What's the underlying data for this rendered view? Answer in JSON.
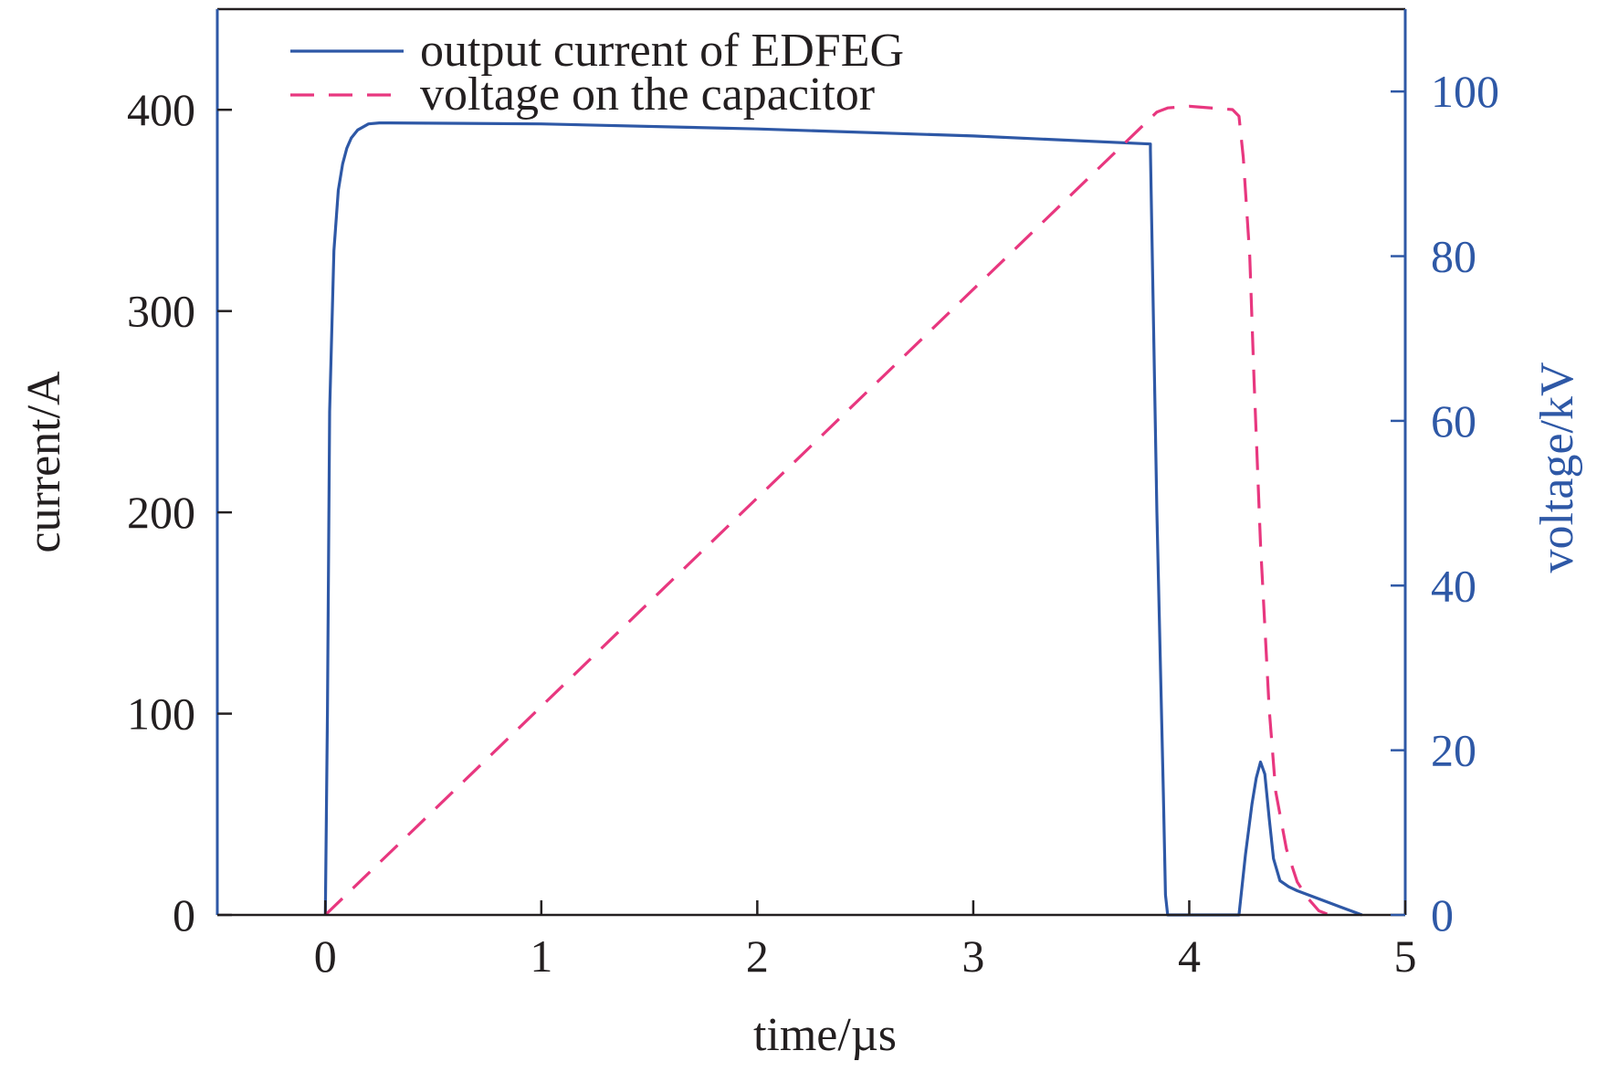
{
  "chart_data": {
    "type": "line",
    "xlabel": "time/µs",
    "ylabel_left": "current/A",
    "ylabel_right": "voltage/kV",
    "xlim": [
      -0.5,
      5
    ],
    "ylim_left": [
      0,
      450
    ],
    "ylim_right": [
      0,
      110
    ],
    "x_ticks": [
      0,
      1,
      2,
      3,
      4,
      5
    ],
    "y_left_ticks": [
      0,
      100,
      200,
      300,
      400
    ],
    "y_right_ticks": [
      0,
      20,
      40,
      60,
      80,
      100
    ],
    "grid": false,
    "legend_position": "top-left",
    "colors": {
      "current": "#2e58a6",
      "voltage": "#e8377f",
      "right_axis": "#2e58a6",
      "frame": "#231f20"
    },
    "series": [
      {
        "name": "output current of EDFEG",
        "axis": "left",
        "style": "solid",
        "x": [
          0.0,
          0.01,
          0.02,
          0.04,
          0.06,
          0.08,
          0.1,
          0.12,
          0.15,
          0.2,
          0.25,
          0.3,
          1.0,
          2.0,
          3.0,
          3.82,
          3.82,
          3.85,
          3.88,
          3.89,
          3.9,
          4.23,
          4.26,
          4.29,
          4.31,
          4.33,
          4.35,
          4.37,
          4.39,
          4.42,
          4.46,
          4.5,
          4.6,
          4.7,
          4.8
        ],
        "y": [
          0,
          100,
          250,
          330,
          360,
          373,
          381,
          386,
          390,
          393,
          393.5,
          393.5,
          393,
          390.5,
          387,
          383,
          380,
          200,
          60,
          10,
          0,
          0,
          30,
          55,
          68,
          76,
          70,
          48,
          28,
          17,
          14,
          12,
          8,
          4,
          0
        ]
      },
      {
        "name": "voltage on the capacitor",
        "axis": "right",
        "style": "dashed",
        "x": [
          0.0,
          3.85,
          3.9,
          4.0,
          4.2,
          4.23,
          4.25,
          4.28,
          4.3,
          4.33,
          4.37,
          4.4,
          4.45,
          4.5,
          4.55,
          4.6,
          4.65
        ],
        "y": [
          0,
          97.5,
          98,
          98.2,
          97.8,
          97,
          92,
          80,
          65,
          45,
          25,
          15,
          8,
          4,
          2,
          0.5,
          0
        ]
      }
    ]
  }
}
